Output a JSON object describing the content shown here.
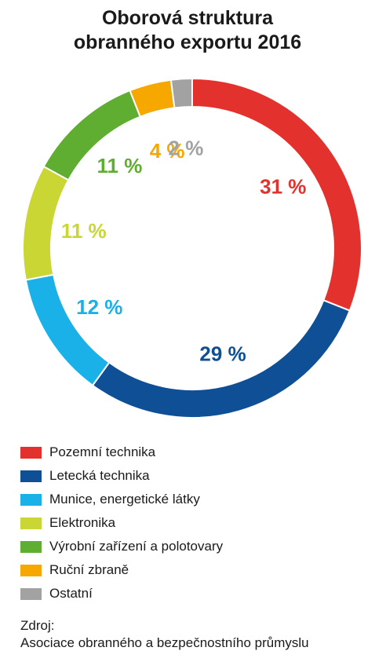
{
  "chart_data": {
    "type": "pie",
    "title": [
      "Oborová struktura",
      "obranného exportu 2016"
    ],
    "series": [
      {
        "name": "Pozemní technika",
        "value": 31,
        "label": "31 %",
        "color": "#e3312d"
      },
      {
        "name": "Letecká technika",
        "value": 29,
        "label": "29 %",
        "color": "#0e4f96"
      },
      {
        "name": "Munice, energetické látky",
        "value": 12,
        "label": "12 %",
        "color": "#1ab0e8"
      },
      {
        "name": "Elektronika",
        "value": 11,
        "label": "11 %",
        "color": "#c9d634"
      },
      {
        "name": "Výrobní zařízení a polotovary",
        "value": 11,
        "label": "11 %",
        "color": "#5fad31"
      },
      {
        "name": "Ruční zbraně",
        "value": 4,
        "label": "4 %",
        "color": "#f6a800"
      },
      {
        "name": "Ostatní",
        "value": 2,
        "label": "2 %",
        "color": "#a2a2a2"
      }
    ],
    "legend_position": "bottom-left",
    "style": "donut"
  },
  "source": {
    "label": "Zdroj:",
    "text": "Asociace obranného a bezpečnostního průmyslu"
  }
}
